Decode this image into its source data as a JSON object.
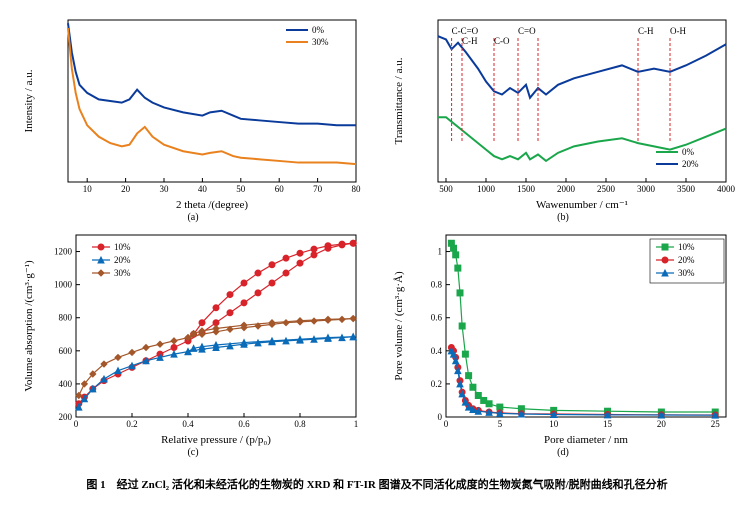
{
  "a": {
    "xlabel": "2 theta  /(degree)",
    "ylabel": "Intensity / a.u.",
    "sub": "(a)",
    "xlim": [
      5,
      80
    ],
    "xticks": [
      10,
      20,
      30,
      40,
      50,
      60,
      70,
      80
    ],
    "ylim": [
      0,
      100
    ],
    "legend_items": [
      {
        "label": "0%",
        "color": "#0a3b9b"
      },
      {
        "label": "30%",
        "color": "#e9821e"
      }
    ],
    "series": [
      {
        "color": "#0a3b9b",
        "width": 2,
        "pts": [
          [
            5,
            98
          ],
          [
            6,
            80
          ],
          [
            7,
            68
          ],
          [
            8,
            60
          ],
          [
            10,
            55
          ],
          [
            13,
            51
          ],
          [
            16,
            50
          ],
          [
            19,
            49
          ],
          [
            21,
            51
          ],
          [
            23,
            57
          ],
          [
            25,
            52
          ],
          [
            27,
            49
          ],
          [
            30,
            46
          ],
          [
            35,
            43
          ],
          [
            40,
            41
          ],
          [
            42,
            43
          ],
          [
            45,
            44
          ],
          [
            48,
            41
          ],
          [
            50,
            39
          ],
          [
            55,
            38
          ],
          [
            60,
            37
          ],
          [
            65,
            36
          ],
          [
            70,
            36
          ],
          [
            75,
            35
          ],
          [
            80,
            35
          ]
        ]
      },
      {
        "color": "#e9821e",
        "width": 2,
        "pts": [
          [
            5,
            95
          ],
          [
            6,
            70
          ],
          [
            7,
            55
          ],
          [
            8,
            45
          ],
          [
            10,
            35
          ],
          [
            13,
            28
          ],
          [
            16,
            24
          ],
          [
            19,
            22
          ],
          [
            21,
            23
          ],
          [
            23,
            30
          ],
          [
            25,
            34
          ],
          [
            27,
            28
          ],
          [
            30,
            23
          ],
          [
            35,
            19
          ],
          [
            40,
            17
          ],
          [
            42,
            18
          ],
          [
            45,
            19
          ],
          [
            48,
            16
          ],
          [
            50,
            15
          ],
          [
            55,
            14
          ],
          [
            60,
            13
          ],
          [
            65,
            12
          ],
          [
            70,
            12
          ],
          [
            75,
            12
          ],
          [
            80,
            11
          ]
        ]
      }
    ],
    "box_color": "#000",
    "bg": "#fff"
  },
  "b": {
    "xlabel": "Wawenumber  / cm⁻¹",
    "ylabel": "Transmittance / a.u.",
    "sub": "(b)",
    "xlim": [
      400,
      4000
    ],
    "xticks": [
      500,
      1000,
      1500,
      2000,
      2500,
      3000,
      3500,
      4000
    ],
    "ylim": [
      0,
      100
    ],
    "legend_items": [
      {
        "label": "0%",
        "color": "#1aa64a"
      },
      {
        "label": "20%",
        "color": "#0a3b9b"
      }
    ],
    "series": [
      {
        "color": "#1aa64a",
        "width": 2,
        "pts": [
          [
            400,
            40
          ],
          [
            500,
            40
          ],
          [
            600,
            36
          ],
          [
            700,
            32
          ],
          [
            800,
            28
          ],
          [
            900,
            24
          ],
          [
            1000,
            20
          ],
          [
            1100,
            16
          ],
          [
            1200,
            14
          ],
          [
            1300,
            16
          ],
          [
            1400,
            14
          ],
          [
            1500,
            18
          ],
          [
            1550,
            14
          ],
          [
            1650,
            17
          ],
          [
            1750,
            13
          ],
          [
            1900,
            18
          ],
          [
            2100,
            22
          ],
          [
            2400,
            25
          ],
          [
            2700,
            27
          ],
          [
            2900,
            24
          ],
          [
            3100,
            22
          ],
          [
            3300,
            20
          ],
          [
            3500,
            23
          ],
          [
            3750,
            28
          ],
          [
            4000,
            33
          ]
        ]
      },
      {
        "color": "#0a3b9b",
        "width": 2,
        "pts": [
          [
            400,
            90
          ],
          [
            500,
            88
          ],
          [
            570,
            82
          ],
          [
            650,
            86
          ],
          [
            750,
            80
          ],
          [
            900,
            70
          ],
          [
            1000,
            62
          ],
          [
            1100,
            56
          ],
          [
            1200,
            54
          ],
          [
            1300,
            58
          ],
          [
            1400,
            55
          ],
          [
            1500,
            60
          ],
          [
            1550,
            52
          ],
          [
            1650,
            58
          ],
          [
            1750,
            54
          ],
          [
            1900,
            60
          ],
          [
            2100,
            64
          ],
          [
            2400,
            68
          ],
          [
            2700,
            72
          ],
          [
            2900,
            68
          ],
          [
            3100,
            70
          ],
          [
            3300,
            68
          ],
          [
            3500,
            72
          ],
          [
            3750,
            78
          ],
          [
            4000,
            85
          ]
        ]
      }
    ],
    "peaks": [
      {
        "x": 570,
        "label": "C-C=O",
        "yoff": 0
      },
      {
        "x": 700,
        "label": "C-H",
        "yoff": 10
      },
      {
        "x": 1100,
        "label": "C-O",
        "yoff": 10
      },
      {
        "x": 1400,
        "label": "C=O",
        "yoff": 0
      },
      {
        "x": 1650,
        "label": "",
        "yoff": 0
      },
      {
        "x": 2900,
        "label": "C-H",
        "yoff": 0
      },
      {
        "x": 3300,
        "label": "O-H",
        "yoff": 0
      }
    ],
    "peak_color": "#d8232a",
    "box_color": "#000"
  },
  "c": {
    "xlabel": "Relative pressure  / (p/p₀)",
    "ylabel": "Volume absorption  /(cm³·g⁻¹)",
    "sub": "(c)",
    "xlim": [
      0,
      1
    ],
    "xticks": [
      0,
      0.2,
      0.4,
      0.6,
      0.8,
      1.0
    ],
    "ylim": [
      200,
      1300
    ],
    "yticks": [
      200,
      400,
      600,
      800,
      1000,
      1200
    ],
    "legend_items": [
      {
        "label": "10%",
        "color": "#d8232a",
        "marker": "circle"
      },
      {
        "label": "20%",
        "color": "#0a6bb8",
        "marker": "tri"
      },
      {
        "label": "30%",
        "color": "#a3572b",
        "marker": "diamond"
      }
    ],
    "series": [
      {
        "color": "#d8232a",
        "marker": "circle",
        "pts_a": [
          [
            0.01,
            280
          ],
          [
            0.03,
            320
          ],
          [
            0.06,
            370
          ],
          [
            0.1,
            420
          ],
          [
            0.15,
            460
          ],
          [
            0.2,
            500
          ],
          [
            0.25,
            540
          ],
          [
            0.3,
            580
          ],
          [
            0.35,
            620
          ],
          [
            0.4,
            660
          ],
          [
            0.45,
            710
          ],
          [
            0.5,
            770
          ],
          [
            0.55,
            830
          ],
          [
            0.6,
            890
          ],
          [
            0.65,
            950
          ],
          [
            0.7,
            1010
          ],
          [
            0.75,
            1070
          ],
          [
            0.8,
            1130
          ],
          [
            0.85,
            1180
          ],
          [
            0.9,
            1220
          ],
          [
            0.95,
            1240
          ],
          [
            0.99,
            1250
          ]
        ],
        "pts_d": [
          [
            0.99,
            1250
          ],
          [
            0.95,
            1245
          ],
          [
            0.9,
            1235
          ],
          [
            0.85,
            1215
          ],
          [
            0.8,
            1190
          ],
          [
            0.75,
            1160
          ],
          [
            0.7,
            1120
          ],
          [
            0.65,
            1070
          ],
          [
            0.6,
            1010
          ],
          [
            0.55,
            940
          ],
          [
            0.5,
            860
          ],
          [
            0.45,
            770
          ],
          [
            0.42,
            700
          ],
          [
            0.4,
            660
          ]
        ]
      },
      {
        "color": "#0a6bb8",
        "marker": "tri",
        "pts_a": [
          [
            0.01,
            260
          ],
          [
            0.03,
            310
          ],
          [
            0.06,
            370
          ],
          [
            0.1,
            430
          ],
          [
            0.15,
            480
          ],
          [
            0.2,
            510
          ],
          [
            0.25,
            540
          ],
          [
            0.3,
            560
          ],
          [
            0.35,
            580
          ],
          [
            0.4,
            595
          ],
          [
            0.45,
            610
          ],
          [
            0.5,
            620
          ],
          [
            0.55,
            630
          ],
          [
            0.6,
            640
          ],
          [
            0.65,
            648
          ],
          [
            0.7,
            655
          ],
          [
            0.75,
            660
          ],
          [
            0.8,
            665
          ],
          [
            0.85,
            670
          ],
          [
            0.9,
            675
          ],
          [
            0.95,
            680
          ],
          [
            0.99,
            685
          ]
        ],
        "pts_d": [
          [
            0.99,
            685
          ],
          [
            0.9,
            680
          ],
          [
            0.8,
            670
          ],
          [
            0.7,
            660
          ],
          [
            0.6,
            650
          ],
          [
            0.5,
            635
          ],
          [
            0.45,
            625
          ],
          [
            0.42,
            615
          ],
          [
            0.4,
            595
          ]
        ]
      },
      {
        "color": "#a3572b",
        "marker": "diamond",
        "pts_a": [
          [
            0.01,
            330
          ],
          [
            0.03,
            400
          ],
          [
            0.06,
            460
          ],
          [
            0.1,
            520
          ],
          [
            0.15,
            560
          ],
          [
            0.2,
            590
          ],
          [
            0.25,
            620
          ],
          [
            0.3,
            640
          ],
          [
            0.35,
            660
          ],
          [
            0.4,
            680
          ],
          [
            0.45,
            700
          ],
          [
            0.5,
            715
          ],
          [
            0.55,
            730
          ],
          [
            0.6,
            740
          ],
          [
            0.65,
            750
          ],
          [
            0.7,
            760
          ],
          [
            0.75,
            770
          ],
          [
            0.8,
            775
          ],
          [
            0.85,
            780
          ],
          [
            0.9,
            785
          ],
          [
            0.95,
            790
          ],
          [
            0.99,
            795
          ]
        ],
        "pts_d": [
          [
            0.99,
            795
          ],
          [
            0.9,
            790
          ],
          [
            0.8,
            782
          ],
          [
            0.7,
            770
          ],
          [
            0.6,
            755
          ],
          [
            0.5,
            735
          ],
          [
            0.45,
            720
          ],
          [
            0.42,
            705
          ],
          [
            0.4,
            680
          ]
        ]
      }
    ],
    "marker_size": 3,
    "box_color": "#000"
  },
  "d": {
    "xlabel": "Pore diameter  / nm",
    "ylabel": "Pore volume / (cm³·g·Å)",
    "sub": "(d)",
    "xlim": [
      0,
      26
    ],
    "xticks": [
      0,
      5,
      10,
      15,
      20,
      25
    ],
    "ylim": [
      0,
      1.1
    ],
    "yticks": [
      0,
      0.2,
      0.4,
      0.6,
      0.8,
      1.0
    ],
    "legend_items": [
      {
        "label": "10%",
        "color": "#1aa64a",
        "marker": "square"
      },
      {
        "label": "20%",
        "color": "#d8232a",
        "marker": "circle"
      },
      {
        "label": "30%",
        "color": "#0a6bb8",
        "marker": "tri"
      }
    ],
    "series": [
      {
        "color": "#1aa64a",
        "marker": "square",
        "pts": [
          [
            0.5,
            1.05
          ],
          [
            0.7,
            1.02
          ],
          [
            0.9,
            0.98
          ],
          [
            1.1,
            0.9
          ],
          [
            1.3,
            0.75
          ],
          [
            1.5,
            0.55
          ],
          [
            1.8,
            0.38
          ],
          [
            2.1,
            0.25
          ],
          [
            2.5,
            0.18
          ],
          [
            3.0,
            0.13
          ],
          [
            3.5,
            0.1
          ],
          [
            4.0,
            0.08
          ],
          [
            5.0,
            0.06
          ],
          [
            7.0,
            0.05
          ],
          [
            10,
            0.04
          ],
          [
            15,
            0.035
          ],
          [
            20,
            0.03
          ],
          [
            25,
            0.03
          ]
        ]
      },
      {
        "color": "#d8232a",
        "marker": "circle",
        "pts": [
          [
            0.5,
            0.42
          ],
          [
            0.7,
            0.4
          ],
          [
            0.9,
            0.36
          ],
          [
            1.1,
            0.3
          ],
          [
            1.3,
            0.22
          ],
          [
            1.5,
            0.15
          ],
          [
            1.8,
            0.1
          ],
          [
            2.1,
            0.07
          ],
          [
            2.5,
            0.05
          ],
          [
            3.0,
            0.04
          ],
          [
            4.0,
            0.03
          ],
          [
            5.0,
            0.025
          ],
          [
            7.0,
            0.02
          ],
          [
            10,
            0.018
          ],
          [
            15,
            0.015
          ],
          [
            20,
            0.013
          ],
          [
            25,
            0.012
          ]
        ]
      },
      {
        "color": "#0a6bb8",
        "marker": "tri",
        "pts": [
          [
            0.5,
            0.4
          ],
          [
            0.7,
            0.38
          ],
          [
            0.9,
            0.34
          ],
          [
            1.1,
            0.28
          ],
          [
            1.3,
            0.2
          ],
          [
            1.5,
            0.14
          ],
          [
            1.8,
            0.09
          ],
          [
            2.1,
            0.06
          ],
          [
            2.5,
            0.045
          ],
          [
            3.0,
            0.035
          ],
          [
            4.0,
            0.028
          ],
          [
            5.0,
            0.022
          ],
          [
            7.0,
            0.018
          ],
          [
            10,
            0.015
          ],
          [
            15,
            0.013
          ],
          [
            20,
            0.012
          ],
          [
            25,
            0.011
          ]
        ]
      }
    ],
    "marker_size": 3,
    "box_color": "#000"
  },
  "caption": "图 1　经过 ZnCl₂ 活化和未经活化的生物炭的 XRD 和 FT-IR 图谱及不同活化成度的生物炭氮气吸附/脱附曲线和孔径分析"
}
